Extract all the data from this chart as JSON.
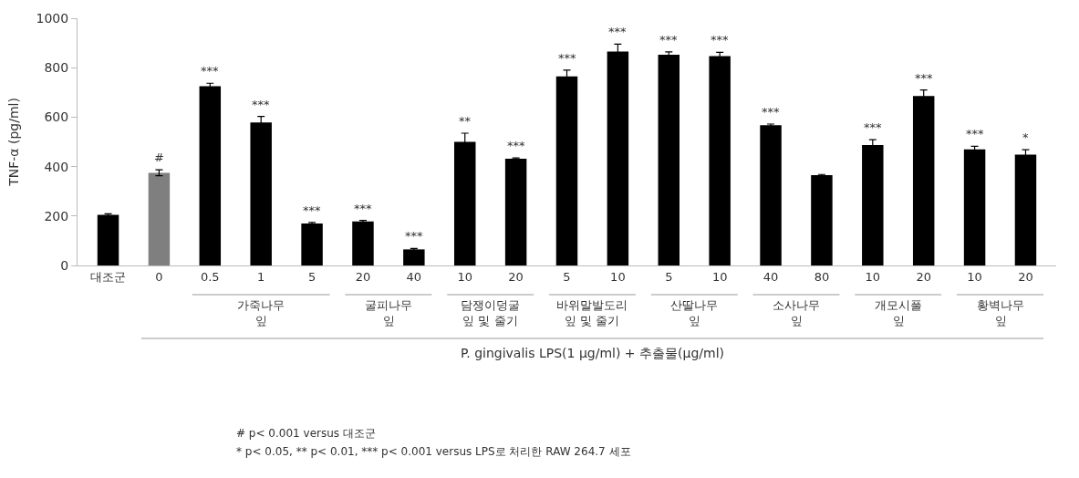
{
  "chart_data": {
    "type": "bar",
    "ylabel": "TNF-α (pg/ml)",
    "xlabel": "P. gingivalis LPS(1 μg/ml) + 추출물(μg/ml)",
    "categories": [
      "대조군",
      "0",
      "0.5",
      "1",
      "5",
      "20",
      "40",
      "10",
      "20",
      "5",
      "10",
      "5",
      "10",
      "40",
      "80",
      "10",
      "20",
      "10",
      "20"
    ],
    "values": [
      205,
      375,
      725,
      578,
      170,
      178,
      65,
      500,
      432,
      765,
      865,
      852,
      847,
      567,
      365,
      487,
      685,
      470,
      448
    ],
    "errors": [
      4,
      12,
      12,
      25,
      4,
      4,
      4,
      35,
      3,
      25,
      30,
      12,
      15,
      5,
      3,
      22,
      25,
      12,
      20
    ],
    "value_labels": [
      null,
      "#",
      "***",
      "***",
      "***",
      "***",
      "***",
      "**",
      "***",
      "***",
      "***",
      "***",
      "***",
      "***",
      null,
      "***",
      "***",
      "***",
      "*"
    ],
    "colors": [
      "#000000",
      "#7f7f7f",
      "#000000",
      "#000000",
      "#000000",
      "#000000",
      "#000000",
      "#000000",
      "#000000",
      "#000000",
      "#000000",
      "#000000",
      "#000000",
      "#000000",
      "#000000",
      "#000000",
      "#000000",
      "#000000",
      "#000000"
    ],
    "ylim": [
      0,
      1000
    ],
    "yticks": [
      0,
      200,
      400,
      600,
      800,
      1000
    ],
    "grid": false,
    "annotations": [
      "가죽나무\n잎",
      "굴피나무\n잎",
      "담쟁이덩굴\n잎 및 줄기",
      "바위말발도리\n잎 및 줄기",
      "산딸나무\n잎",
      "소사나무\n잎",
      "개모시풀\n잎",
      "황벽나무\n잎",
      "# p< 0.001 versus 대조군",
      "* p< 0.05, ** p< 0.01, *** p< 0.001 versus LPS로 처리한 RAW 264.7 세포"
    ]
  }
}
